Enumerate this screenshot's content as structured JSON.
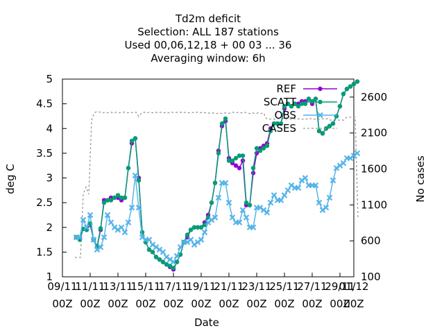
{
  "chart_data": {
    "type": "line",
    "title_lines": [
      "Td2m deficit",
      "Selection: ALL    187 stations",
      "Used  00,06,12,18 + 00 03 ... 36",
      "Averaging window:  6h"
    ],
    "xlabel": "Date",
    "ylabel": "deg C",
    "y2label": "No cases",
    "x_range": [
      0,
      21.5
    ],
    "x_ticks": [
      {
        "x": 0,
        "line1": "09/11",
        "line2": "00Z"
      },
      {
        "x": 2,
        "line1": "11/11",
        "line2": "00Z"
      },
      {
        "x": 4,
        "line1": "13/11",
        "line2": "00Z"
      },
      {
        "x": 6,
        "line1": "15/11",
        "line2": "00Z"
      },
      {
        "x": 8,
        "line1": "17/11",
        "line2": "00Z"
      },
      {
        "x": 10,
        "line1": "19/11",
        "line2": "00Z"
      },
      {
        "x": 12,
        "line1": "21/11",
        "line2": "00Z"
      },
      {
        "x": 14,
        "line1": "23/11",
        "line2": "00Z"
      },
      {
        "x": 16,
        "line1": "25/11",
        "line2": "00Z"
      },
      {
        "x": 18,
        "line1": "27/11",
        "line2": "00Z"
      },
      {
        "x": 20,
        "line1": "29/11",
        "line2": "00Z"
      },
      {
        "x": 22,
        "line1": "01/12",
        "line2": "00Z"
      }
    ],
    "y_range": [
      1,
      5
    ],
    "y_ticks": [
      "1",
      "1.5",
      "2",
      "2.5",
      "3",
      "3.5",
      "4",
      "4.5",
      "5"
    ],
    "y2_range": [
      100,
      2850
    ],
    "y2_ticks": [
      "100",
      "600",
      "1100",
      "1600",
      "2100",
      "2600"
    ],
    "legend_position": "top-right",
    "series": [
      {
        "name": "REF",
        "color": "#9400d3",
        "marker": "circle",
        "axis": "y",
        "x": [
          1.0,
          1.25,
          1.5,
          1.75,
          2.0,
          2.25,
          2.5,
          2.75,
          3.0,
          3.25,
          3.5,
          3.75,
          4.0,
          4.25,
          4.5,
          4.75,
          5.0,
          5.25,
          5.5,
          5.75,
          6.0,
          6.25,
          6.5,
          6.75,
          7.0,
          7.25,
          7.5,
          7.75,
          8.0,
          8.25,
          8.5,
          8.75,
          9.0,
          9.25,
          9.5,
          9.75,
          10.0,
          10.25,
          10.5,
          10.75,
          11.0,
          11.25,
          11.5,
          11.75,
          12.0,
          12.25,
          12.5,
          12.75,
          13.0,
          13.25,
          13.5,
          13.75,
          14.0,
          14.25,
          14.5,
          14.75,
          15.0,
          15.25,
          15.5,
          15.75,
          16.0,
          16.25,
          16.5,
          16.75,
          17.0,
          17.25,
          17.5,
          17.75,
          18.0,
          18.25,
          18.5,
          18.75,
          19.0,
          19.25,
          19.5,
          19.75,
          20.0,
          20.25,
          20.5,
          20.75,
          21.0,
          21.25
        ],
        "values": [
          1.8,
          1.78,
          1.97,
          1.95,
          2.05,
          1.75,
          1.6,
          1.95,
          2.55,
          2.55,
          2.6,
          2.6,
          2.6,
          2.55,
          2.6,
          3.2,
          3.7,
          3.8,
          3.0,
          1.9,
          1.7,
          1.55,
          1.5,
          1.4,
          1.35,
          1.3,
          1.25,
          1.2,
          1.15,
          1.3,
          1.45,
          1.7,
          1.8,
          1.95,
          2.0,
          2.0,
          2.0,
          2.1,
          2.25,
          2.5,
          2.9,
          3.55,
          4.05,
          4.15,
          3.4,
          3.3,
          3.25,
          3.2,
          3.35,
          2.45,
          2.45,
          3.1,
          3.5,
          3.6,
          3.65,
          3.7,
          4.0,
          4.1,
          4.1,
          4.1,
          4.4,
          4.5,
          4.45,
          4.5,
          4.5,
          4.55,
          4.55,
          4.6,
          4.5,
          4.6,
          3.95,
          3.9,
          4.0,
          4.05,
          4.1,
          4.25,
          4.45,
          4.7,
          4.8,
          4.85,
          4.9,
          4.95
        ]
      },
      {
        "name": "SCATT",
        "color": "#009e73",
        "marker": "circle",
        "axis": "y",
        "x": [
          1.0,
          1.25,
          1.5,
          1.75,
          2.0,
          2.25,
          2.5,
          2.75,
          3.0,
          3.25,
          3.5,
          3.75,
          4.0,
          4.25,
          4.5,
          4.75,
          5.0,
          5.25,
          5.5,
          5.75,
          6.0,
          6.25,
          6.5,
          6.75,
          7.0,
          7.25,
          7.5,
          7.75,
          8.0,
          8.25,
          8.5,
          8.75,
          9.0,
          9.25,
          9.5,
          9.75,
          10.0,
          10.25,
          10.5,
          10.75,
          11.0,
          11.25,
          11.5,
          11.75,
          12.0,
          12.25,
          12.5,
          12.75,
          13.0,
          13.25,
          13.5,
          13.75,
          14.0,
          14.25,
          14.5,
          14.75,
          15.0,
          15.25,
          15.5,
          15.75,
          16.0,
          16.25,
          16.5,
          16.75,
          17.0,
          17.25,
          17.5,
          17.75,
          18.0,
          18.25,
          18.5,
          18.75,
          19.0,
          19.25,
          19.5,
          19.75,
          20.0,
          20.25,
          20.5,
          20.75,
          21.0,
          21.25
        ],
        "values": [
          1.8,
          1.75,
          1.97,
          1.95,
          2.08,
          1.75,
          1.62,
          1.98,
          2.5,
          2.55,
          2.55,
          2.6,
          2.65,
          2.6,
          2.6,
          3.2,
          3.75,
          3.8,
          2.95,
          1.9,
          1.7,
          1.55,
          1.5,
          1.4,
          1.35,
          1.3,
          1.25,
          1.22,
          1.18,
          1.3,
          1.45,
          1.7,
          1.85,
          1.95,
          2.0,
          2.0,
          2.0,
          2.05,
          2.2,
          2.5,
          2.9,
          3.5,
          4.1,
          4.2,
          3.35,
          3.35,
          3.4,
          3.45,
          3.45,
          2.5,
          2.45,
          3.2,
          3.6,
          3.55,
          3.6,
          3.65,
          3.95,
          4.1,
          4.1,
          4.1,
          4.45,
          4.5,
          4.45,
          4.5,
          4.45,
          4.5,
          4.5,
          4.6,
          4.55,
          4.6,
          3.95,
          3.9,
          4.0,
          4.05,
          4.1,
          4.25,
          4.45,
          4.7,
          4.8,
          4.85,
          4.9,
          4.95
        ]
      },
      {
        "name": "OBS",
        "color": "#56b4e9",
        "marker": "x",
        "axis": "y",
        "x": [
          1.0,
          1.25,
          1.5,
          1.75,
          2.0,
          2.25,
          2.5,
          2.75,
          3.0,
          3.25,
          3.5,
          3.75,
          4.0,
          4.25,
          4.5,
          4.75,
          5.0,
          5.25,
          5.5,
          5.75,
          6.0,
          6.25,
          6.5,
          6.75,
          7.0,
          7.25,
          7.5,
          7.75,
          8.0,
          8.25,
          8.5,
          8.75,
          9.0,
          9.25,
          9.5,
          9.75,
          10.0,
          10.25,
          10.5,
          10.75,
          11.0,
          11.25,
          11.5,
          11.75,
          12.0,
          12.25,
          12.5,
          12.75,
          13.0,
          13.25,
          13.5,
          13.75,
          14.0,
          14.25,
          14.5,
          14.75,
          15.0,
          15.25,
          15.5,
          15.75,
          16.0,
          16.25,
          16.5,
          16.75,
          17.0,
          17.25,
          17.5,
          17.75,
          18.0,
          18.25,
          18.5,
          18.75,
          19.0,
          19.25,
          19.5,
          19.75,
          20.0,
          20.25,
          20.5,
          20.75,
          21.0,
          21.25
        ],
        "values": [
          1.8,
          1.8,
          2.15,
          2.0,
          2.25,
          1.75,
          1.55,
          1.6,
          1.8,
          2.25,
          2.1,
          2.0,
          1.95,
          2.0,
          1.9,
          2.1,
          2.4,
          3.05,
          2.4,
          1.8,
          1.75,
          1.75,
          1.65,
          1.6,
          1.55,
          1.5,
          1.4,
          1.35,
          1.3,
          1.42,
          1.6,
          1.7,
          1.7,
          1.75,
          1.65,
          1.7,
          1.75,
          1.9,
          2.1,
          2.15,
          2.2,
          2.6,
          2.9,
          2.9,
          2.5,
          2.2,
          2.1,
          2.1,
          2.35,
          2.2,
          2.0,
          2.0,
          2.4,
          2.4,
          2.35,
          2.3,
          2.5,
          2.65,
          2.55,
          2.55,
          2.65,
          2.75,
          2.85,
          2.8,
          2.8,
          2.95,
          3.0,
          2.85,
          2.85,
          2.85,
          2.5,
          2.35,
          2.4,
          2.6,
          2.95,
          3.2,
          3.25,
          3.3,
          3.4,
          3.4,
          3.45,
          3.5
        ]
      },
      {
        "name": "CASES",
        "color": "#999999",
        "dashed": true,
        "axis": "y2",
        "x": [
          0.9,
          1.1,
          1.3,
          1.5,
          1.7,
          1.9,
          2.1,
          2.3,
          2.5,
          2.7,
          2.9,
          3.1,
          3.3,
          3.5,
          3.7,
          3.9,
          4.1,
          4.3,
          4.5,
          4.7,
          4.9,
          5.1,
          5.3,
          5.5,
          5.7,
          5.9,
          6.1,
          6.3,
          6.5,
          6.7,
          6.9,
          7.1,
          7.3,
          7.5,
          7.7,
          7.9,
          8.1,
          8.3,
          8.5,
          8.7,
          8.9,
          9.1,
          9.3,
          9.5,
          9.7,
          9.9,
          10.1,
          10.3,
          10.5,
          10.7,
          10.9,
          11.1,
          11.3,
          11.5,
          11.7,
          11.9,
          12.1,
          12.3,
          12.5,
          12.7,
          12.9,
          13.1,
          13.3,
          13.5,
          13.7,
          13.9,
          14.1,
          14.3,
          14.5,
          14.7,
          14.9,
          15.1,
          15.3,
          15.5,
          15.7,
          15.9,
          16.1,
          16.3,
          16.5,
          16.7,
          16.9,
          17.1,
          17.3,
          17.5,
          17.7,
          17.9,
          18.1,
          18.3,
          18.5,
          18.7,
          18.9,
          19.1,
          19.3,
          19.5,
          19.7,
          19.9,
          20.1,
          20.3,
          20.5,
          20.7,
          20.9,
          21.1,
          21.3
        ],
        "values": [
          370,
          370,
          370,
          1250,
          1350,
          1250,
          2280,
          2380,
          2400,
          2390,
          2380,
          2390,
          2380,
          2390,
          2380,
          2390,
          2380,
          2390,
          2390,
          2380,
          2390,
          2380,
          2390,
          2330,
          2380,
          2390,
          2380,
          2390,
          2380,
          2390,
          2380,
          2390,
          2380,
          2390,
          2380,
          2390,
          2380,
          2390,
          2390,
          2380,
          2390,
          2380,
          2390,
          2380,
          2390,
          2380,
          2390,
          2380,
          2380,
          2370,
          2380,
          2370,
          2380,
          2370,
          2380,
          2370,
          2380,
          2390,
          2380,
          2390,
          2380,
          2390,
          2380,
          2370,
          2380,
          2370,
          2380,
          2370,
          2380,
          2300,
          2290,
          2300,
          2290,
          2300,
          2290,
          2300,
          2290,
          2300,
          2290,
          2300,
          2290,
          2300,
          2290,
          2300,
          2290,
          2300,
          2290,
          2300,
          2290,
          2300,
          2290,
          2300,
          2280,
          2280,
          2280,
          2280,
          2280,
          2280,
          2320,
          2320,
          2320,
          2320,
          900
        ]
      }
    ]
  }
}
